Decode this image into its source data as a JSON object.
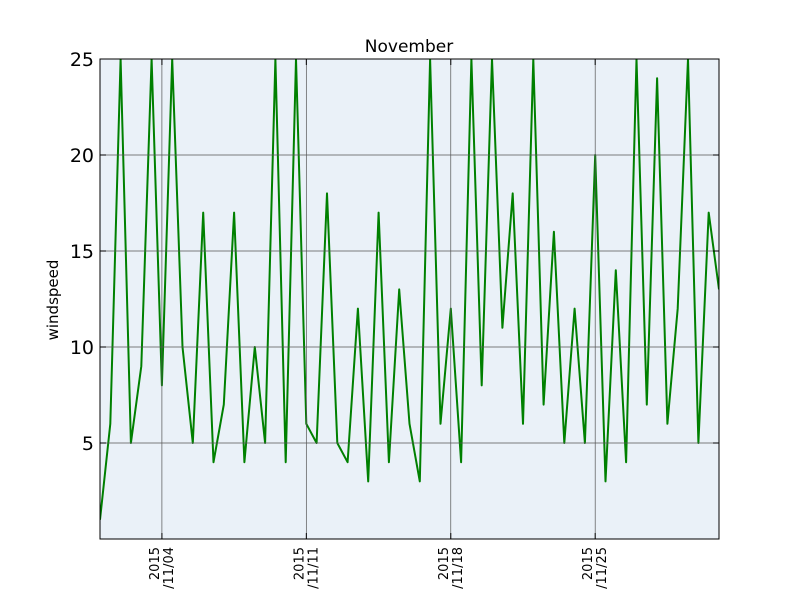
{
  "chart_data": {
    "type": "line",
    "title": "November",
    "xlabel": "",
    "ylabel": "windspeed",
    "ylim": [
      0,
      25
    ],
    "yticks": [
      5,
      10,
      15,
      20,
      25
    ],
    "xlim": [
      "2015-11-01",
      "2015-12-01"
    ],
    "xticks": [
      {
        "value": "2015-11-04",
        "label_line1": "2015",
        "label_line2": "/11/04"
      },
      {
        "value": "2015-11-11",
        "label_line1": "2015",
        "label_line2": "/11/11"
      },
      {
        "value": "2015-11-18",
        "label_line1": "2015",
        "label_line2": "/11/18"
      },
      {
        "value": "2015-11-25",
        "label_line1": "2015",
        "label_line2": "/11/25"
      }
    ],
    "grid": true,
    "colors": {
      "line": "#008000",
      "plot_background": "#eaf1f8",
      "grid": "#555555"
    },
    "series": [
      {
        "x": [
          "2015-11-01",
          "2015-11-01T12:00",
          "2015-11-02",
          "2015-11-02T12:00",
          "2015-11-03",
          "2015-11-03T12:00",
          "2015-11-04",
          "2015-11-04T12:00",
          "2015-11-05",
          "2015-11-05T12:00",
          "2015-11-06",
          "2015-11-06T12:00",
          "2015-11-07",
          "2015-11-07T12:00",
          "2015-11-08",
          "2015-11-08T12:00",
          "2015-11-09",
          "2015-11-09T12:00",
          "2015-11-10",
          "2015-11-10T12:00",
          "2015-11-11",
          "2015-11-11T12:00",
          "2015-11-12",
          "2015-11-12T12:00",
          "2015-11-13",
          "2015-11-13T12:00",
          "2015-11-14",
          "2015-11-14T12:00",
          "2015-11-15",
          "2015-11-15T12:00",
          "2015-11-16",
          "2015-11-16T12:00",
          "2015-11-17",
          "2015-11-17T12:00",
          "2015-11-18",
          "2015-11-18T12:00",
          "2015-11-19",
          "2015-11-19T12:00",
          "2015-11-20",
          "2015-11-20T12:00",
          "2015-11-21",
          "2015-11-21T12:00",
          "2015-11-22",
          "2015-11-22T12:00",
          "2015-11-23",
          "2015-11-23T12:00",
          "2015-11-24",
          "2015-11-24T12:00",
          "2015-11-25",
          "2015-11-25T12:00",
          "2015-11-26",
          "2015-11-26T12:00",
          "2015-11-27",
          "2015-11-27T12:00",
          "2015-11-28",
          "2015-11-28T12:00",
          "2015-11-29",
          "2015-11-29T12:00",
          "2015-11-30",
          "2015-11-30T12:00",
          "2015-12-01"
        ],
        "y": [
          1,
          6,
          25,
          5,
          9,
          25,
          8,
          25,
          10,
          5,
          17,
          4,
          7,
          17,
          4,
          10,
          5,
          25,
          4,
          25,
          6,
          5,
          18,
          5,
          4,
          12,
          3,
          17,
          4,
          13,
          6,
          3,
          25,
          6,
          12,
          4,
          25,
          8,
          25,
          11,
          18,
          6,
          25,
          7,
          16,
          5,
          12,
          5,
          20,
          3,
          14,
          4,
          25,
          7,
          24,
          6,
          12,
          25,
          5,
          17,
          13
        ]
      }
    ]
  }
}
